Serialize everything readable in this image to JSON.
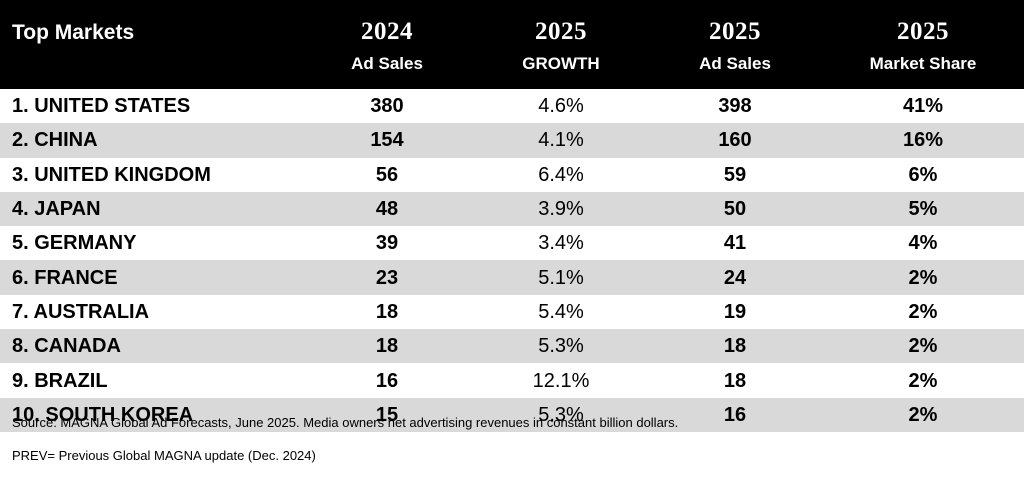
{
  "chart_data": {
    "type": "table",
    "header": {
      "market": "Top Markets",
      "columns": [
        {
          "year": "2024",
          "label": "Ad Sales"
        },
        {
          "year": "2025",
          "label": "GROWTH"
        },
        {
          "year": "2025",
          "label": "Ad Sales"
        },
        {
          "year": "2025",
          "label": "Market Share"
        }
      ]
    },
    "rows": [
      {
        "market": "1. UNITED STATES",
        "sales_2024": "380",
        "growth_2025": "4.6%",
        "sales_2025": "398",
        "share_2025": "41%"
      },
      {
        "market": "2. CHINA",
        "sales_2024": "154",
        "growth_2025": "4.1%",
        "sales_2025": "160",
        "share_2025": "16%"
      },
      {
        "market": "3. UNITED KINGDOM",
        "sales_2024": "56",
        "growth_2025": "6.4%",
        "sales_2025": "59",
        "share_2025": "6%"
      },
      {
        "market": "4. JAPAN",
        "sales_2024": "48",
        "growth_2025": "3.9%",
        "sales_2025": "50",
        "share_2025": "5%"
      },
      {
        "market": "5. GERMANY",
        "sales_2024": "39",
        "growth_2025": "3.4%",
        "sales_2025": "41",
        "share_2025": "4%"
      },
      {
        "market": "6. FRANCE",
        "sales_2024": "23",
        "growth_2025": "5.1%",
        "sales_2025": "24",
        "share_2025": "2%"
      },
      {
        "market": "7. AUSTRALIA",
        "sales_2024": "18",
        "growth_2025": "5.4%",
        "sales_2025": "19",
        "share_2025": "2%"
      },
      {
        "market": "8. CANADA",
        "sales_2024": "18",
        "growth_2025": "5.3%",
        "sales_2025": "18",
        "share_2025": "2%"
      },
      {
        "market": "9. BRAZIL",
        "sales_2024": "16",
        "growth_2025": "12.1%",
        "sales_2025": "18",
        "share_2025": "2%"
      },
      {
        "market": "10. SOUTH KOREA",
        "sales_2024": "15",
        "growth_2025": "5.3%",
        "sales_2025": "16",
        "share_2025": "2%"
      }
    ],
    "colors": {
      "header_bg": "#000000",
      "header_text": "#ffffff",
      "row_alt_bg": "#d9d9d9",
      "row_bg": "#ffffff"
    }
  },
  "notes": {
    "source": "Source: MAGNA Global Ad Forecasts, June 2025. Media owners net advertising revenues in constant billion dollars.",
    "prev": "PREV= Previous Global MAGNA update (Dec. 2024)"
  }
}
